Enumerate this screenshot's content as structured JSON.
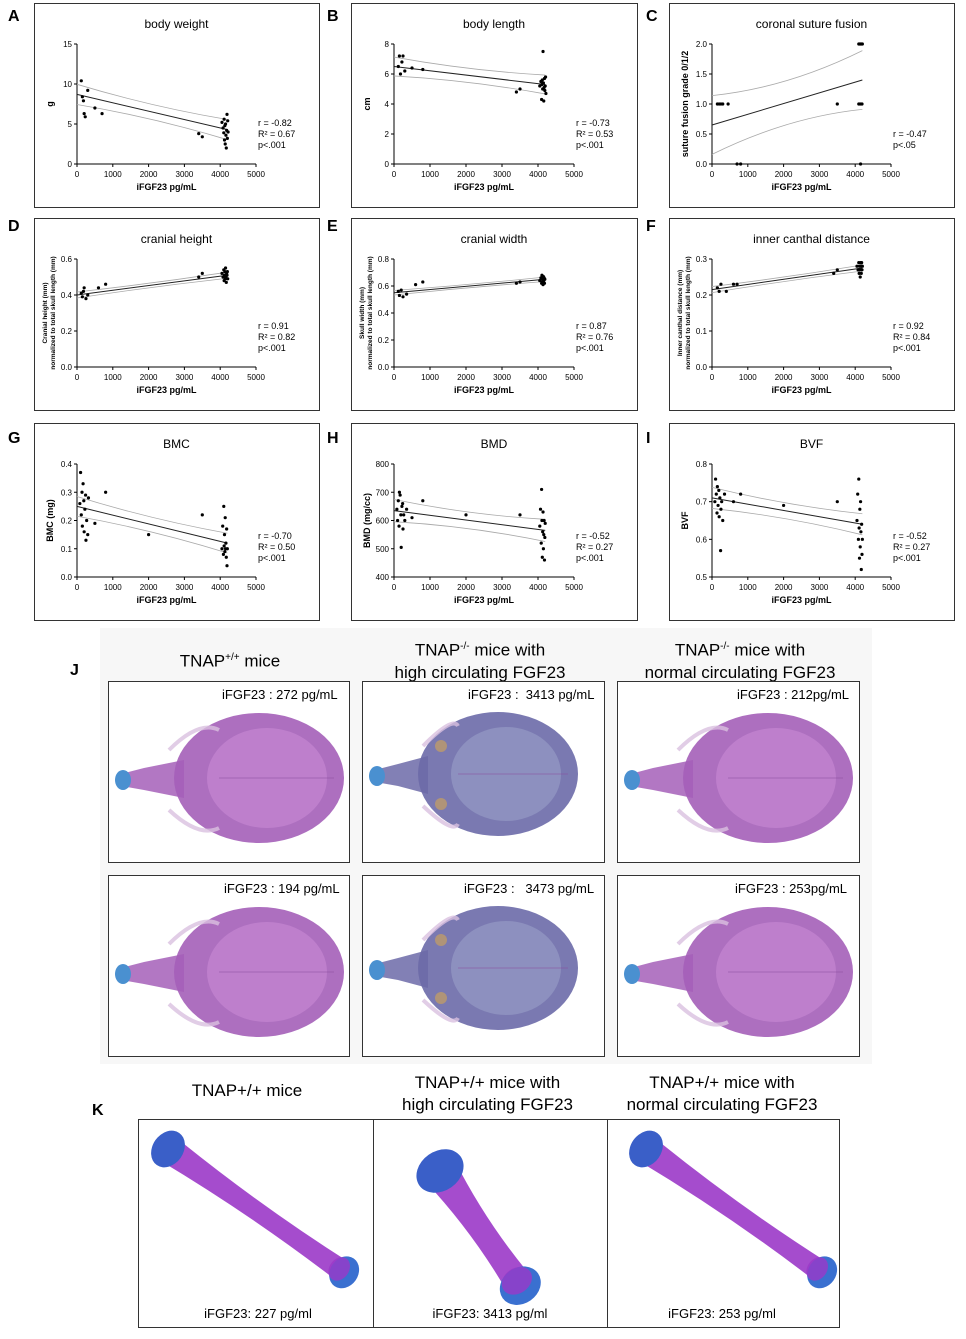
{
  "chart_data": [
    {
      "id": "A",
      "letter": "A",
      "type": "scatter",
      "title": "body weight",
      "xlabel": "iFGF23 pg/mL",
      "ylabel": "g",
      "xlim": [
        0,
        5000
      ],
      "ylim": [
        0,
        15
      ],
      "xticks": [
        0,
        1000,
        2000,
        3000,
        4000,
        5000
      ],
      "yticks": [
        0,
        5,
        10,
        15
      ],
      "stats": [
        "r = -0.82",
        "R² = 0.67",
        "p<.001"
      ],
      "fit": [
        [
          0,
          8.7
        ],
        [
          4200,
          4.3
        ]
      ],
      "band": 0.9,
      "points": [
        [
          120,
          10.4
        ],
        [
          150,
          8.4
        ],
        [
          180,
          7.9
        ],
        [
          200,
          6.3
        ],
        [
          230,
          5.9
        ],
        [
          300,
          9.2
        ],
        [
          500,
          7.0
        ],
        [
          700,
          6.3
        ],
        [
          3400,
          3.8
        ],
        [
          3500,
          3.4
        ],
        [
          4050,
          5.2
        ],
        [
          4080,
          4.5
        ],
        [
          4100,
          3.9
        ],
        [
          4110,
          5.6
        ],
        [
          4120,
          3.0
        ],
        [
          4130,
          4.8
        ],
        [
          4140,
          2.5
        ],
        [
          4150,
          5.0
        ],
        [
          4160,
          3.6
        ],
        [
          4170,
          2.0
        ],
        [
          4180,
          4.2
        ],
        [
          4190,
          6.2
        ],
        [
          4200,
          3.2
        ],
        [
          4210,
          5.4
        ],
        [
          4220,
          4.0
        ]
      ]
    },
    {
      "id": "B",
      "letter": "B",
      "type": "scatter",
      "title": "body length",
      "xlabel": "iFGF23 pg/mL",
      "ylabel": "cm",
      "xlim": [
        0,
        5000
      ],
      "ylim": [
        0,
        8
      ],
      "xticks": [
        0,
        1000,
        2000,
        3000,
        4000,
        5000
      ],
      "yticks": [
        0,
        2,
        4,
        6,
        8
      ],
      "stats": [
        "r = -0.73",
        "R² = 0.53",
        "p<.001"
      ],
      "fit": [
        [
          0,
          6.5
        ],
        [
          4200,
          5.3
        ]
      ],
      "band": 0.45,
      "points": [
        [
          120,
          6.5
        ],
        [
          150,
          7.2
        ],
        [
          180,
          6.0
        ],
        [
          220,
          6.8
        ],
        [
          250,
          7.2
        ],
        [
          300,
          6.2
        ],
        [
          500,
          6.4
        ],
        [
          800,
          6.3
        ],
        [
          3400,
          4.8
        ],
        [
          3500,
          5.0
        ],
        [
          4050,
          5.2
        ],
        [
          4080,
          5.5
        ],
        [
          4100,
          4.3
        ],
        [
          4110,
          5.3
        ],
        [
          4120,
          5.6
        ],
        [
          4130,
          5.0
        ],
        [
          4140,
          7.5
        ],
        [
          4150,
          5.4
        ],
        [
          4160,
          4.2
        ],
        [
          4170,
          5.1
        ],
        [
          4180,
          5.7
        ],
        [
          4190,
          4.9
        ],
        [
          4200,
          5.2
        ],
        [
          4210,
          5.8
        ],
        [
          4220,
          4.7
        ]
      ]
    },
    {
      "id": "C",
      "letter": "C",
      "type": "scatter",
      "title": "coronal suture fusion",
      "xlabel": "iFGF23 pg/mL",
      "ylabel": "suture fusion grade 0/1/2",
      "xlim": [
        0,
        5000
      ],
      "ylim": [
        0,
        2
      ],
      "xticks": [
        0,
        1000,
        2000,
        3000,
        4000,
        5000
      ],
      "yticks": [
        0.0,
        0.5,
        1.0,
        1.5,
        2.0
      ],
      "ydec": 1,
      "stats": [
        "r = -0.47",
        "p<.05"
      ],
      "fit": [
        [
          0,
          0.65
        ],
        [
          4200,
          1.4
        ]
      ],
      "band": 0.35,
      "points": [
        [
          150,
          1.0
        ],
        [
          200,
          1.0
        ],
        [
          250,
          1.0
        ],
        [
          300,
          1.0
        ],
        [
          450,
          1.0
        ],
        [
          700,
          0.0
        ],
        [
          800,
          0.0
        ],
        [
          3500,
          1.0
        ],
        [
          4100,
          2.0
        ],
        [
          4120,
          2.0
        ],
        [
          4140,
          2.0
        ],
        [
          4160,
          2.0
        ],
        [
          4180,
          2.0
        ],
        [
          4200,
          2.0
        ],
        [
          4100,
          1.0
        ],
        [
          4130,
          1.0
        ],
        [
          4160,
          1.0
        ],
        [
          4190,
          1.0
        ],
        [
          4150,
          0.0
        ]
      ]
    },
    {
      "id": "D",
      "letter": "D",
      "type": "scatter",
      "title": "cranial height",
      "xlabel": "iFGF23 pg/mL",
      "ylabel": "Cranial height (mm) normalized to total skull length (mm)",
      "xlim": [
        0,
        5000
      ],
      "ylim": [
        0,
        0.6
      ],
      "xticks": [
        0,
        1000,
        2000,
        3000,
        4000,
        5000
      ],
      "yticks": [
        0.0,
        0.2,
        0.4,
        0.6
      ],
      "ydec": 1,
      "stats": [
        "r = 0.91",
        "R² = 0.82",
        "p<.001"
      ],
      "fit": [
        [
          0,
          0.4
        ],
        [
          4200,
          0.51
        ]
      ],
      "band": 0.012,
      "points": [
        [
          120,
          0.41
        ],
        [
          150,
          0.39
        ],
        [
          180,
          0.42
        ],
        [
          200,
          0.44
        ],
        [
          250,
          0.38
        ],
        [
          300,
          0.4
        ],
        [
          600,
          0.44
        ],
        [
          800,
          0.46
        ],
        [
          3400,
          0.5
        ],
        [
          3500,
          0.52
        ],
        [
          4050,
          0.52
        ],
        [
          4080,
          0.5
        ],
        [
          4100,
          0.54
        ],
        [
          4110,
          0.48
        ],
        [
          4120,
          0.51
        ],
        [
          4130,
          0.53
        ],
        [
          4140,
          0.49
        ],
        [
          4150,
          0.55
        ],
        [
          4160,
          0.5
        ],
        [
          4170,
          0.47
        ],
        [
          4180,
          0.52
        ],
        [
          4190,
          0.51
        ],
        [
          4200,
          0.53
        ],
        [
          4210,
          0.49
        ]
      ]
    },
    {
      "id": "E",
      "letter": "E",
      "type": "scatter",
      "title": "cranial width",
      "xlabel": "iFGF23 pg/mL",
      "ylabel": "Skull width (mm) normalized to total skull length (mm)",
      "xlim": [
        0,
        5000
      ],
      "ylim": [
        0,
        0.8
      ],
      "xticks": [
        0,
        1000,
        2000,
        3000,
        4000,
        5000
      ],
      "yticks": [
        0.0,
        0.2,
        0.4,
        0.6,
        0.8
      ],
      "ydec": 1,
      "stats": [
        "r = 0.87",
        "R² = 0.76",
        "p<.001"
      ],
      "fit": [
        [
          0,
          0.55
        ],
        [
          4200,
          0.65
        ]
      ],
      "band": 0.012,
      "points": [
        [
          120,
          0.56
        ],
        [
          150,
          0.53
        ],
        [
          200,
          0.57
        ],
        [
          250,
          0.52
        ],
        [
          350,
          0.54
        ],
        [
          600,
          0.61
        ],
        [
          800,
          0.63
        ],
        [
          3400,
          0.62
        ],
        [
          3500,
          0.63
        ],
        [
          4050,
          0.64
        ],
        [
          4080,
          0.66
        ],
        [
          4100,
          0.62
        ],
        [
          4110,
          0.68
        ],
        [
          4120,
          0.63
        ],
        [
          4130,
          0.65
        ],
        [
          4140,
          0.61
        ],
        [
          4150,
          0.67
        ],
        [
          4160,
          0.64
        ],
        [
          4170,
          0.66
        ],
        [
          4180,
          0.62
        ],
        [
          4190,
          0.65
        ]
      ]
    },
    {
      "id": "F",
      "letter": "F",
      "type": "scatter",
      "title": "inner canthal distance",
      "xlabel": "iFGF23 pg/mL",
      "ylabel": "Inner canthal distance (mm) normalized to total skull length (mm)",
      "xlim": [
        0,
        5000
      ],
      "ylim": [
        0,
        0.3
      ],
      "xticks": [
        0,
        1000,
        2000,
        3000,
        4000,
        5000
      ],
      "yticks": [
        0.0,
        0.1,
        0.2,
        0.3
      ],
      "ydec": 1,
      "stats": [
        "r = 0.92",
        "R² = 0.84",
        "p<.001"
      ],
      "fit": [
        [
          0,
          0.215
        ],
        [
          4200,
          0.275
        ]
      ],
      "band": 0.006,
      "points": [
        [
          150,
          0.22
        ],
        [
          200,
          0.21
        ],
        [
          250,
          0.23
        ],
        [
          400,
          0.21
        ],
        [
          600,
          0.23
        ],
        [
          700,
          0.23
        ],
        [
          3400,
          0.26
        ],
        [
          3500,
          0.27
        ],
        [
          4050,
          0.28
        ],
        [
          4080,
          0.27
        ],
        [
          4100,
          0.29
        ],
        [
          4110,
          0.26
        ],
        [
          4120,
          0.28
        ],
        [
          4130,
          0.27
        ],
        [
          4140,
          0.25
        ],
        [
          4150,
          0.29
        ],
        [
          4160,
          0.28
        ],
        [
          4170,
          0.26
        ],
        [
          4180,
          0.29
        ],
        [
          4190,
          0.27
        ],
        [
          4200,
          0.28
        ]
      ]
    },
    {
      "id": "G",
      "letter": "G",
      "type": "scatter",
      "title": "BMC",
      "xlabel": "iFGF23 pg/mL",
      "ylabel": "BMC (mg)",
      "xlim": [
        0,
        5000
      ],
      "ylim": [
        0,
        0.4
      ],
      "xticks": [
        0,
        1000,
        2000,
        3000,
        4000,
        5000
      ],
      "yticks": [
        0.0,
        0.1,
        0.2,
        0.3,
        0.4
      ],
      "ydec": 1,
      "stats": [
        "r = -0.70",
        "R² = 0.50",
        "p<.001"
      ],
      "fit": [
        [
          0,
          0.25
        ],
        [
          4200,
          0.12
        ]
      ],
      "band": 0.025,
      "points": [
        [
          80,
          0.26
        ],
        [
          100,
          0.37
        ],
        [
          120,
          0.22
        ],
        [
          140,
          0.3
        ],
        [
          150,
          0.18
        ],
        [
          170,
          0.33
        ],
        [
          190,
          0.27
        ],
        [
          200,
          0.16
        ],
        [
          220,
          0.24
        ],
        [
          240,
          0.29
        ],
        [
          250,
          0.13
        ],
        [
          270,
          0.2
        ],
        [
          300,
          0.15
        ],
        [
          320,
          0.28
        ],
        [
          500,
          0.19
        ],
        [
          800,
          0.3
        ],
        [
          2000,
          0.15
        ],
        [
          3500,
          0.22
        ],
        [
          4050,
          0.1
        ],
        [
          4070,
          0.18
        ],
        [
          4090,
          0.08
        ],
        [
          4100,
          0.25
        ],
        [
          4110,
          0.11
        ],
        [
          4120,
          0.15
        ],
        [
          4130,
          0.09
        ],
        [
          4140,
          0.21
        ],
        [
          4150,
          0.1
        ],
        [
          4160,
          0.12
        ],
        [
          4170,
          0.07
        ],
        [
          4180,
          0.17
        ],
        [
          4190,
          0.04
        ],
        [
          4200,
          0.1
        ]
      ]
    },
    {
      "id": "H",
      "letter": "H",
      "type": "scatter",
      "title": "BMD",
      "xlabel": "iFGF23 pg/mL",
      "ylabel": "BMD (mg/cc)",
      "xlim": [
        0,
        5000
      ],
      "ylim": [
        400,
        800
      ],
      "xticks": [
        0,
        1000,
        2000,
        3000,
        4000,
        5000
      ],
      "yticks": [
        400,
        500,
        600,
        700,
        800
      ],
      "stats": [
        "r = -0.52",
        "R² = 0.27",
        "p<.001"
      ],
      "fit": [
        [
          0,
          635
        ],
        [
          4200,
          565
        ]
      ],
      "band": 28,
      "points": [
        [
          80,
          640
        ],
        [
          100,
          600
        ],
        [
          120,
          670
        ],
        [
          140,
          580
        ],
        [
          150,
          700
        ],
        [
          170,
          690
        ],
        [
          190,
          620
        ],
        [
          200,
          505
        ],
        [
          220,
          650
        ],
        [
          240,
          660
        ],
        [
          250,
          570
        ],
        [
          270,
          620
        ],
        [
          300,
          600
        ],
        [
          350,
          640
        ],
        [
          500,
          610
        ],
        [
          800,
          670
        ],
        [
          2000,
          620
        ],
        [
          3500,
          620
        ],
        [
          4050,
          580
        ],
        [
          4070,
          640
        ],
        [
          4090,
          520
        ],
        [
          4100,
          710
        ],
        [
          4110,
          600
        ],
        [
          4120,
          470
        ],
        [
          4130,
          560
        ],
        [
          4140,
          630
        ],
        [
          4150,
          500
        ],
        [
          4160,
          550
        ],
        [
          4170,
          600
        ],
        [
          4180,
          460
        ],
        [
          4190,
          540
        ],
        [
          4200,
          590
        ]
      ]
    },
    {
      "id": "I",
      "letter": "I",
      "type": "scatter",
      "title": "BVF",
      "xlabel": "iFGF23 pg/mL",
      "ylabel": "BVF",
      "xlim": [
        0,
        5000
      ],
      "ylim": [
        0.5,
        0.8
      ],
      "xticks": [
        0,
        1000,
        2000,
        3000,
        4000,
        5000
      ],
      "yticks": [
        0.5,
        0.6,
        0.7,
        0.8
      ],
      "ydec": 1,
      "stats": [
        "r = -0.52",
        "R² = 0.27",
        "p<.001"
      ],
      "fit": [
        [
          0,
          0.71
        ],
        [
          4200,
          0.64
        ]
      ],
      "band": 0.02,
      "points": [
        [
          80,
          0.7
        ],
        [
          100,
          0.76
        ],
        [
          120,
          0.72
        ],
        [
          140,
          0.67
        ],
        [
          150,
          0.74
        ],
        [
          170,
          0.69
        ],
        [
          190,
          0.73
        ],
        [
          200,
          0.66
        ],
        [
          220,
          0.71
        ],
        [
          240,
          0.57
        ],
        [
          250,
          0.68
        ],
        [
          270,
          0.7
        ],
        [
          300,
          0.65
        ],
        [
          350,
          0.72
        ],
        [
          600,
          0.7
        ],
        [
          800,
          0.72
        ],
        [
          2000,
          0.69
        ],
        [
          3500,
          0.7
        ],
        [
          4050,
          0.65
        ],
        [
          4070,
          0.72
        ],
        [
          4090,
          0.6
        ],
        [
          4100,
          0.76
        ],
        [
          4110,
          0.63
        ],
        [
          4120,
          0.55
        ],
        [
          4130,
          0.68
        ],
        [
          4140,
          0.58
        ],
        [
          4150,
          0.7
        ],
        [
          4160,
          0.62
        ],
        [
          4170,
          0.52
        ],
        [
          4180,
          0.64
        ],
        [
          4190,
          0.56
        ],
        [
          4200,
          0.6
        ]
      ]
    }
  ],
  "figure_j": {
    "letter": "J",
    "col_titles": [
      {
        "main": "TNAP",
        "sup": "+/+",
        "rest": " mice",
        "line2": ""
      },
      {
        "main": "TNAP",
        "sup": "-/-",
        "rest": " mice with",
        "line2": "high circulating FGF23"
      },
      {
        "main": "TNAP",
        "sup": "-/-",
        "rest": " mice with",
        "line2": "normal circulating FGF23"
      }
    ],
    "skull_labels": [
      "iFGF23 : 272 pg/mL",
      "iFGF23 :  3413 pg/mL",
      "iFGF23 : 212pg/mL",
      "iFGF23 : 194 pg/mL",
      "iFGF23 :   3473 pg/mL",
      "iFGF23 : 253pg/mL"
    ]
  },
  "figure_k": {
    "letter": "K",
    "col_titles": [
      {
        "line1": "TNAP+/+ mice",
        "line2": ""
      },
      {
        "line1": "TNAP+/+ mice with",
        "line2": "high circulating FGF23"
      },
      {
        "line1": "TNAP+/+ mice with",
        "line2": "normal circulating FGF23"
      }
    ],
    "femur_labels": [
      "iFGF23: 227 pg/ml",
      "iFGF23: 3413 pg/ml",
      "iFGF23: 253 pg/ml"
    ]
  },
  "colors": {
    "skull_purple": "#a45fb8",
    "skull_dark": "#6d5a9a",
    "cartilage_blue": "#4a90d0",
    "bone_purple": "#9b38c8"
  }
}
